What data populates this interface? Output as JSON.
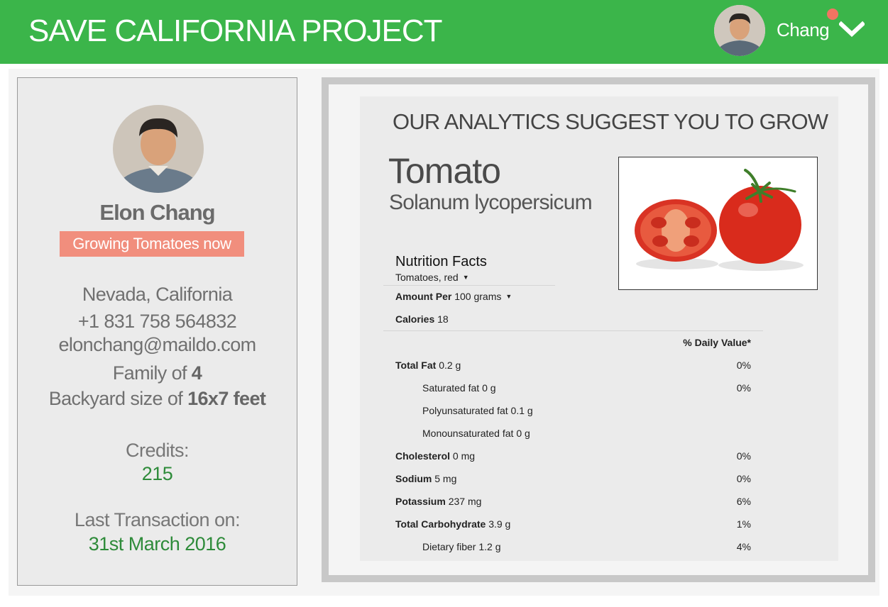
{
  "header": {
    "app_title": "SAVE CALIFORNIA PROJECT",
    "user_name": "Chang",
    "brand_color": "#3bb54a",
    "notification_color": "#f17462"
  },
  "profile": {
    "name": "Elon Chang",
    "status": "Growing Tomatoes now",
    "location": "Nevada, California",
    "phone": "+1 831 758 564832",
    "email": "elonchang@maildo.com",
    "family_prefix": "Family of",
    "family_size": "4",
    "backyard_prefix": "Backyard size of",
    "backyard_size": "16x7 feet",
    "credits_label": "Credits:",
    "credits_value": "215",
    "last_tx_label": "Last Transaction on:",
    "last_tx_date": "31st March 2016"
  },
  "suggestion": {
    "heading": "OUR ANALYTICS SUGGEST YOU TO GROW",
    "crop_name": "Tomato",
    "scientific_name": "Solanum lycopersicum",
    "image_icon": "tomato-image"
  },
  "nutrition": {
    "title": "Nutrition Facts",
    "variety": "Tomatoes, red",
    "amount_label": "Amount Per",
    "amount_value": "100 grams",
    "calories_label": "Calories",
    "calories_value": "18",
    "daily_value_header": "% Daily Value*",
    "rows": [
      {
        "label": "Total Fat",
        "amount": "0.2 g",
        "pct": "0%"
      },
      {
        "label": "Saturated fat",
        "amount": "0 g",
        "pct": "0%"
      },
      {
        "label": "Polyunsaturated fat",
        "amount": "0.1 g",
        "pct": ""
      },
      {
        "label": "Monounsaturated fat",
        "amount": "0 g",
        "pct": ""
      },
      {
        "label": "Cholesterol",
        "amount": "0 mg",
        "pct": "0%"
      },
      {
        "label": "Sodium",
        "amount": "5 mg",
        "pct": "0%"
      },
      {
        "label": "Potassium",
        "amount": "237 mg",
        "pct": "6%"
      },
      {
        "label": "Total Carbohydrate",
        "amount": "3.9 g",
        "pct": "1%"
      },
      {
        "label": "Dietary fiber",
        "amount": "1.2 g",
        "pct": "4%"
      }
    ]
  }
}
